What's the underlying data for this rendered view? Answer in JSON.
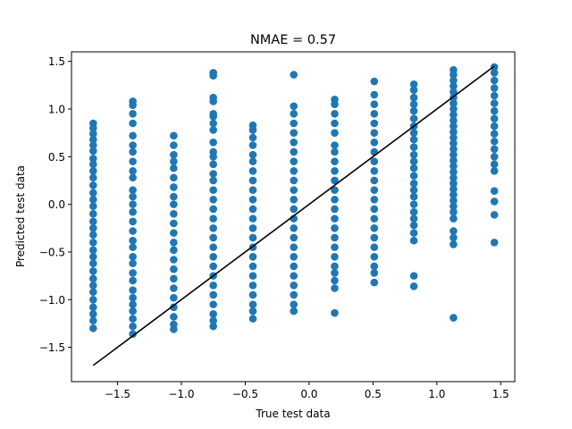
{
  "chart_data": {
    "type": "scatter",
    "title": "NMAE = 0.57",
    "xlabel": "True test data",
    "ylabel": "Predicted test data",
    "xlim": [
      -1.86,
      1.61
    ],
    "ylim": [
      -1.86,
      1.6
    ],
    "xticks": [
      -1.5,
      -1.0,
      -0.5,
      0.0,
      0.5,
      1.0,
      1.5
    ],
    "xtick_labels": [
      "−1.5",
      "−1.0",
      "−0.5",
      "0.0",
      "0.5",
      "1.0",
      "1.5"
    ],
    "yticks": [
      -1.5,
      -1.0,
      -0.5,
      0.0,
      0.5,
      1.0,
      1.5
    ],
    "ytick_labels": [
      "−1.5",
      "−1.0",
      "−0.5",
      "0.0",
      "0.5",
      "1.0",
      "1.5"
    ],
    "grid": false,
    "legend": "none",
    "series": [
      {
        "kind": "points",
        "color": "#1f77b4",
        "points": [
          [
            -1.69,
            0.85
          ],
          [
            -1.69,
            0.8
          ],
          [
            -1.69,
            0.74
          ],
          [
            -1.69,
            0.68
          ],
          [
            -1.69,
            0.62
          ],
          [
            -1.69,
            0.56
          ],
          [
            -1.69,
            0.48
          ],
          [
            -1.69,
            0.42
          ],
          [
            -1.69,
            0.35
          ],
          [
            -1.69,
            0.28
          ],
          [
            -1.69,
            0.2
          ],
          [
            -1.69,
            0.12
          ],
          [
            -1.69,
            0.05
          ],
          [
            -1.69,
            -0.02
          ],
          [
            -1.69,
            -0.1
          ],
          [
            -1.69,
            -0.18
          ],
          [
            -1.69,
            -0.25
          ],
          [
            -1.69,
            -0.32
          ],
          [
            -1.69,
            -0.4
          ],
          [
            -1.69,
            -0.48
          ],
          [
            -1.69,
            -0.55
          ],
          [
            -1.69,
            -0.62
          ],
          [
            -1.69,
            -0.7
          ],
          [
            -1.69,
            -0.78
          ],
          [
            -1.69,
            -0.85
          ],
          [
            -1.69,
            -0.92
          ],
          [
            -1.69,
            -1.0
          ],
          [
            -1.69,
            -1.08
          ],
          [
            -1.69,
            -1.15
          ],
          [
            -1.69,
            -1.22
          ],
          [
            -1.69,
            -1.3
          ],
          [
            -1.38,
            1.08
          ],
          [
            -1.38,
            1.04
          ],
          [
            -1.38,
            0.95
          ],
          [
            -1.38,
            0.85
          ],
          [
            -1.38,
            0.72
          ],
          [
            -1.38,
            0.62
          ],
          [
            -1.38,
            0.55
          ],
          [
            -1.38,
            0.45
          ],
          [
            -1.38,
            0.35
          ],
          [
            -1.38,
            0.28
          ],
          [
            -1.38,
            0.15
          ],
          [
            -1.38,
            0.08
          ],
          [
            -1.38,
            0.0
          ],
          [
            -1.38,
            -0.08
          ],
          [
            -1.38,
            -0.18
          ],
          [
            -1.38,
            -0.28
          ],
          [
            -1.38,
            -0.38
          ],
          [
            -1.38,
            -0.45
          ],
          [
            -1.38,
            -0.55
          ],
          [
            -1.38,
            -0.62
          ],
          [
            -1.38,
            -0.72
          ],
          [
            -1.38,
            -0.8
          ],
          [
            -1.38,
            -0.9
          ],
          [
            -1.38,
            -0.98
          ],
          [
            -1.38,
            -1.05
          ],
          [
            -1.38,
            -1.12
          ],
          [
            -1.38,
            -1.2
          ],
          [
            -1.38,
            -1.28
          ],
          [
            -1.38,
            -1.36
          ],
          [
            -1.06,
            0.72
          ],
          [
            -1.06,
            0.62
          ],
          [
            -1.06,
            0.52
          ],
          [
            -1.06,
            0.45
          ],
          [
            -1.06,
            0.38
          ],
          [
            -1.06,
            0.28
          ],
          [
            -1.06,
            0.18
          ],
          [
            -1.06,
            0.08
          ],
          [
            -1.06,
            0.0
          ],
          [
            -1.06,
            -0.1
          ],
          [
            -1.06,
            -0.2
          ],
          [
            -1.06,
            -0.3
          ],
          [
            -1.06,
            -0.4
          ],
          [
            -1.06,
            -0.48
          ],
          [
            -1.06,
            -0.58
          ],
          [
            -1.06,
            -0.68
          ],
          [
            -1.06,
            -0.78
          ],
          [
            -1.06,
            -0.88
          ],
          [
            -1.06,
            -0.98
          ],
          [
            -1.06,
            -1.08
          ],
          [
            -1.06,
            -1.18
          ],
          [
            -1.06,
            -1.26
          ],
          [
            -1.06,
            -1.31
          ],
          [
            -0.75,
            1.38
          ],
          [
            -0.75,
            1.35
          ],
          [
            -0.75,
            1.12
          ],
          [
            -0.75,
            1.08
          ],
          [
            -0.75,
            0.95
          ],
          [
            -0.75,
            0.92
          ],
          [
            -0.75,
            0.85
          ],
          [
            -0.75,
            0.78
          ],
          [
            -0.75,
            0.65
          ],
          [
            -0.75,
            0.55
          ],
          [
            -0.75,
            0.5
          ],
          [
            -0.75,
            0.42
          ],
          [
            -0.75,
            0.32
          ],
          [
            -0.75,
            0.25
          ],
          [
            -0.75,
            0.15
          ],
          [
            -0.75,
            0.05
          ],
          [
            -0.75,
            -0.05
          ],
          [
            -0.75,
            -0.15
          ],
          [
            -0.75,
            -0.25
          ],
          [
            -0.75,
            -0.35
          ],
          [
            -0.75,
            -0.45
          ],
          [
            -0.75,
            -0.55
          ],
          [
            -0.75,
            -0.65
          ],
          [
            -0.75,
            -0.75
          ],
          [
            -0.75,
            -0.85
          ],
          [
            -0.75,
            -0.95
          ],
          [
            -0.75,
            -1.05
          ],
          [
            -0.75,
            -1.15
          ],
          [
            -0.75,
            -1.22
          ],
          [
            -0.75,
            -1.28
          ],
          [
            -0.44,
            0.83
          ],
          [
            -0.44,
            0.78
          ],
          [
            -0.44,
            0.7
          ],
          [
            -0.44,
            0.62
          ],
          [
            -0.44,
            0.52
          ],
          [
            -0.44,
            0.45
          ],
          [
            -0.44,
            0.35
          ],
          [
            -0.44,
            0.25
          ],
          [
            -0.44,
            0.15
          ],
          [
            -0.44,
            0.05
          ],
          [
            -0.44,
            -0.05
          ],
          [
            -0.44,
            -0.15
          ],
          [
            -0.44,
            -0.25
          ],
          [
            -0.44,
            -0.35
          ],
          [
            -0.44,
            -0.45
          ],
          [
            -0.44,
            -0.55
          ],
          [
            -0.44,
            -0.65
          ],
          [
            -0.44,
            -0.75
          ],
          [
            -0.44,
            -0.85
          ],
          [
            -0.44,
            -0.95
          ],
          [
            -0.44,
            -1.05
          ],
          [
            -0.44,
            -1.12
          ],
          [
            -0.44,
            -1.2
          ],
          [
            -0.12,
            1.36
          ],
          [
            -0.12,
            1.03
          ],
          [
            -0.12,
            0.95
          ],
          [
            -0.12,
            0.85
          ],
          [
            -0.12,
            0.75
          ],
          [
            -0.12,
            0.65
          ],
          [
            -0.12,
            0.55
          ],
          [
            -0.12,
            0.45
          ],
          [
            -0.12,
            0.35
          ],
          [
            -0.12,
            0.25
          ],
          [
            -0.12,
            0.15
          ],
          [
            -0.12,
            0.05
          ],
          [
            -0.12,
            -0.05
          ],
          [
            -0.12,
            -0.15
          ],
          [
            -0.12,
            -0.25
          ],
          [
            -0.12,
            -0.35
          ],
          [
            -0.12,
            -0.45
          ],
          [
            -0.12,
            -0.55
          ],
          [
            -0.12,
            -0.65
          ],
          [
            -0.12,
            -0.75
          ],
          [
            -0.12,
            -0.85
          ],
          [
            -0.12,
            -0.95
          ],
          [
            -0.12,
            -1.05
          ],
          [
            -0.12,
            -1.12
          ],
          [
            0.2,
            1.1
          ],
          [
            0.2,
            1.05
          ],
          [
            0.2,
            0.95
          ],
          [
            0.2,
            0.85
          ],
          [
            0.2,
            0.75
          ],
          [
            0.2,
            0.62
          ],
          [
            0.2,
            0.55
          ],
          [
            0.2,
            0.45
          ],
          [
            0.2,
            0.35
          ],
          [
            0.2,
            0.25
          ],
          [
            0.2,
            0.15
          ],
          [
            0.2,
            0.05
          ],
          [
            0.2,
            -0.05
          ],
          [
            0.2,
            -0.15
          ],
          [
            0.2,
            -0.25
          ],
          [
            0.2,
            -0.35
          ],
          [
            0.2,
            -0.45
          ],
          [
            0.2,
            -0.55
          ],
          [
            0.2,
            -0.65
          ],
          [
            0.2,
            -0.72
          ],
          [
            0.2,
            -0.8
          ],
          [
            0.2,
            -0.88
          ],
          [
            0.2,
            -1.14
          ],
          [
            0.51,
            1.29
          ],
          [
            0.51,
            1.15
          ],
          [
            0.51,
            1.05
          ],
          [
            0.51,
            0.95
          ],
          [
            0.51,
            0.85
          ],
          [
            0.51,
            0.75
          ],
          [
            0.51,
            0.65
          ],
          [
            0.51,
            0.55
          ],
          [
            0.51,
            0.45
          ],
          [
            0.51,
            0.35
          ],
          [
            0.51,
            0.25
          ],
          [
            0.51,
            0.15
          ],
          [
            0.51,
            0.05
          ],
          [
            0.51,
            -0.05
          ],
          [
            0.51,
            -0.15
          ],
          [
            0.51,
            -0.25
          ],
          [
            0.51,
            -0.35
          ],
          [
            0.51,
            -0.45
          ],
          [
            0.51,
            -0.55
          ],
          [
            0.51,
            -0.65
          ],
          [
            0.51,
            -0.72
          ],
          [
            0.51,
            -0.82
          ],
          [
            0.82,
            1.26
          ],
          [
            0.82,
            1.2
          ],
          [
            0.82,
            1.12
          ],
          [
            0.82,
            1.05
          ],
          [
            0.82,
            0.98
          ],
          [
            0.82,
            0.9
          ],
          [
            0.82,
            0.82
          ],
          [
            0.82,
            0.75
          ],
          [
            0.82,
            0.68
          ],
          [
            0.82,
            0.6
          ],
          [
            0.82,
            0.52
          ],
          [
            0.82,
            0.45
          ],
          [
            0.82,
            0.38
          ],
          [
            0.82,
            0.3
          ],
          [
            0.82,
            0.22
          ],
          [
            0.82,
            0.15
          ],
          [
            0.82,
            0.08
          ],
          [
            0.82,
            0.0
          ],
          [
            0.82,
            -0.08
          ],
          [
            0.82,
            -0.15
          ],
          [
            0.82,
            -0.22
          ],
          [
            0.82,
            -0.3
          ],
          [
            0.82,
            -0.38
          ],
          [
            0.82,
            -0.75
          ],
          [
            0.82,
            -0.86
          ],
          [
            1.13,
            1.41
          ],
          [
            1.13,
            1.36
          ],
          [
            1.13,
            1.3
          ],
          [
            1.13,
            1.24
          ],
          [
            1.13,
            1.18
          ],
          [
            1.13,
            1.12
          ],
          [
            1.13,
            1.06
          ],
          [
            1.13,
            1.0
          ],
          [
            1.13,
            0.94
          ],
          [
            1.13,
            0.88
          ],
          [
            1.13,
            0.82
          ],
          [
            1.13,
            0.76
          ],
          [
            1.13,
            0.7
          ],
          [
            1.13,
            0.64
          ],
          [
            1.13,
            0.58
          ],
          [
            1.13,
            0.52
          ],
          [
            1.13,
            0.46
          ],
          [
            1.13,
            0.4
          ],
          [
            1.13,
            0.34
          ],
          [
            1.13,
            0.28
          ],
          [
            1.13,
            0.22
          ],
          [
            1.13,
            0.16
          ],
          [
            1.13,
            0.1
          ],
          [
            1.13,
            0.04
          ],
          [
            1.13,
            -0.02
          ],
          [
            1.13,
            -0.08
          ],
          [
            1.13,
            -0.15
          ],
          [
            1.13,
            -0.28
          ],
          [
            1.13,
            -0.35
          ],
          [
            1.13,
            -0.42
          ],
          [
            1.13,
            -1.19
          ],
          [
            1.45,
            1.44
          ],
          [
            1.45,
            1.38
          ],
          [
            1.45,
            1.3
          ],
          [
            1.45,
            1.22
          ],
          [
            1.45,
            1.14
          ],
          [
            1.45,
            1.06
          ],
          [
            1.45,
            0.98
          ],
          [
            1.45,
            0.9
          ],
          [
            1.45,
            0.82
          ],
          [
            1.45,
            0.74
          ],
          [
            1.45,
            0.66
          ],
          [
            1.45,
            0.58
          ],
          [
            1.45,
            0.5
          ],
          [
            1.45,
            0.42
          ],
          [
            1.45,
            0.35
          ],
          [
            1.45,
            0.14
          ],
          [
            1.45,
            0.03
          ],
          [
            1.45,
            -0.11
          ],
          [
            1.45,
            -0.4
          ]
        ]
      },
      {
        "kind": "line",
        "color": "#000000",
        "x": [
          -1.69,
          1.45
        ],
        "y": [
          -1.69,
          1.45
        ]
      }
    ]
  }
}
